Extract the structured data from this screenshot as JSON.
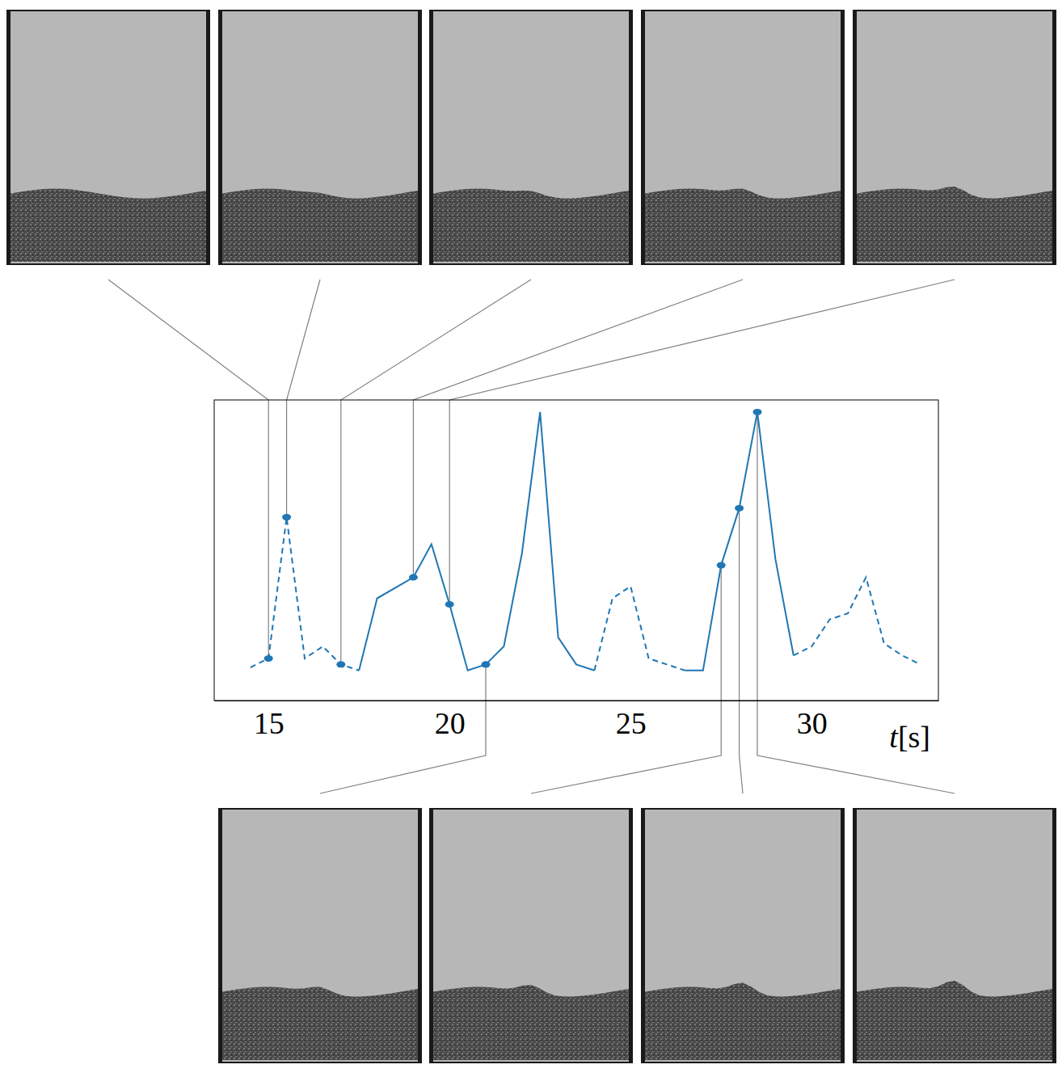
{
  "chart_data": {
    "type": "line",
    "x": [
      14.5,
      15,
      15.5,
      16,
      16.5,
      17,
      17.5,
      18,
      19,
      19.5,
      20,
      20.5,
      21,
      21.5,
      22,
      22.5,
      23,
      23.5,
      24,
      24.5,
      25,
      25.5,
      26,
      26.5,
      27,
      27.5,
      28,
      28.5,
      29,
      29.5,
      30,
      30.5,
      31,
      31.5,
      32,
      32.5,
      33
    ],
    "xlim": [
      13.5,
      33.5
    ],
    "xticks": [
      15,
      20,
      25,
      30
    ],
    "xlabel": "t[s]",
    "ylim": [
      0,
      1
    ],
    "tick_labels": "x",
    "series": [
      {
        "color": "#1f77b4",
        "line_style": "dashed",
        "values": [
          0.11,
          0.14,
          0.61,
          0.14,
          0.18,
          0.12,
          0.1,
          null,
          null,
          null,
          null,
          null,
          null,
          null,
          null,
          null,
          null,
          null,
          0.1,
          0.34,
          0.38,
          0.14,
          0.12,
          0.1,
          null,
          null,
          null,
          null,
          null,
          0.15,
          0.18,
          0.27,
          0.29,
          0.41,
          0.19,
          0.15,
          0.12
        ]
      },
      {
        "color": "#1f77b4",
        "line_style": "solid",
        "values": [
          null,
          null,
          null,
          null,
          null,
          null,
          0.1,
          0.34,
          0.41,
          0.52,
          0.32,
          0.1,
          0.12,
          0.18,
          0.49,
          0.96,
          0.21,
          0.12,
          0.1,
          null,
          null,
          null,
          null,
          0.1,
          0.1,
          0.45,
          0.64,
          0.96,
          0.47,
          0.15,
          null,
          null,
          null,
          null,
          null,
          null,
          null
        ]
      },
      {
        "color": "#1f77b4",
        "type": "scatter",
        "marker": "ellipse",
        "values": [
          null,
          0.14,
          0.61,
          null,
          null,
          0.12,
          null,
          null,
          0.41,
          null,
          0.32,
          null,
          0.12,
          null,
          null,
          null,
          null,
          null,
          null,
          null,
          null,
          null,
          null,
          null,
          null,
          0.45,
          0.64,
          0.96,
          null,
          null,
          null,
          null,
          null,
          null,
          null,
          null,
          null
        ]
      }
    ]
  }
}
